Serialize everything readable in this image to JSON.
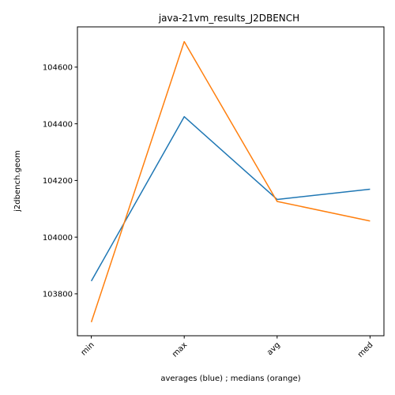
{
  "chart_data": {
    "type": "line",
    "title": "java-21vm_results_J2DBENCH",
    "xlabel": "averages (blue) ; medians (orange)",
    "ylabel": "j2dbench.geom",
    "categories": [
      "min",
      "max",
      "avg",
      "med"
    ],
    "ylim": [
      103652,
      104742
    ],
    "yticks": [
      103800,
      104000,
      104200,
      104400,
      104600
    ],
    "ytick_labels": [
      "103800",
      "104000",
      "104200",
      "104400",
      "104600"
    ],
    "grid": false,
    "series": [
      {
        "color": "#1f77b4",
        "values": [
          103845,
          104425,
          104133,
          104169
        ]
      },
      {
        "color": "#ff7f0e",
        "values": [
          103700,
          104690,
          104126,
          104057
        ]
      }
    ]
  }
}
